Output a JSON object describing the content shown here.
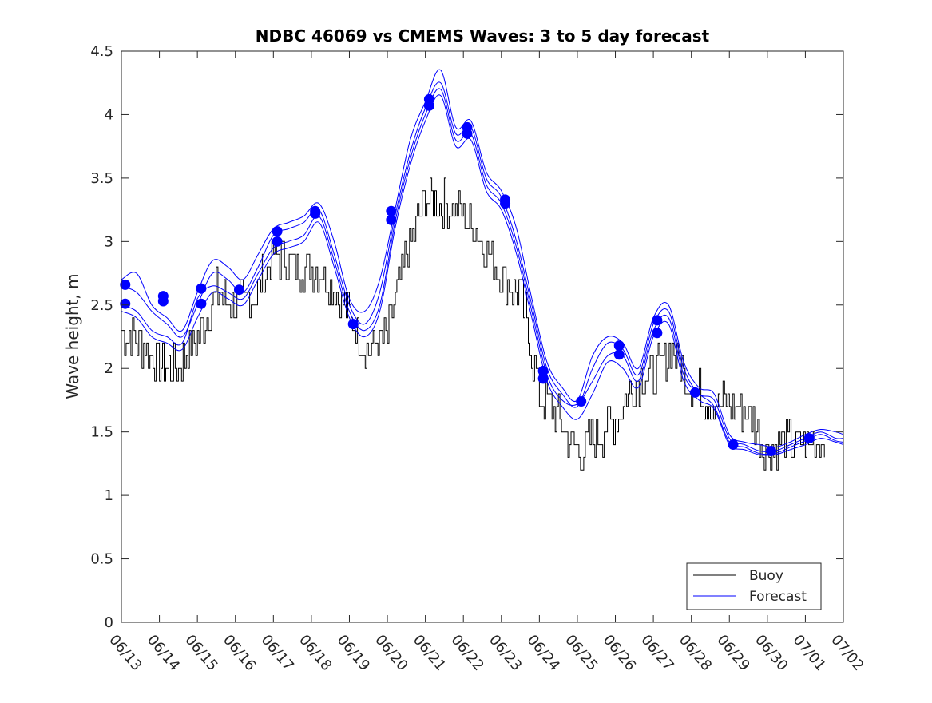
{
  "chart_data": {
    "type": "line",
    "title": "NDBC 46069 vs CMEMS Waves: 3 to 5 day forecast",
    "xlabel": "",
    "ylabel": "Wave height, m",
    "ylim": [
      0,
      4.5
    ],
    "xlim_days": [
      13,
      32
    ],
    "y_ticks": [
      0,
      0.5,
      1,
      1.5,
      2,
      2.5,
      3,
      3.5,
      4,
      4.5
    ],
    "y_tick_labels": [
      "0",
      "0.5",
      "1",
      "1.5",
      "2",
      "2.5",
      "3",
      "3.5",
      "4",
      "4.5"
    ],
    "x_tick_labels": [
      "06/13",
      "06/14",
      "06/15",
      "06/16",
      "06/17",
      "06/18",
      "06/19",
      "06/20",
      "06/21",
      "06/22",
      "06/23",
      "06/24",
      "06/25",
      "06/26",
      "06/27",
      "06/28",
      "06/29",
      "06/30",
      "07/01",
      "07/02"
    ],
    "grid": false,
    "legend_position": "bottom-right",
    "colors": {
      "buoy": "#000000",
      "forecast": "#0000ff"
    },
    "buoy": {
      "name": "Buoy",
      "x": [
        13.0,
        13.5,
        14.0,
        14.5,
        15.0,
        15.5,
        16.0,
        16.5,
        17.0,
        17.5,
        18.0,
        18.5,
        19.0,
        19.5,
        20.0,
        20.5,
        21.0,
        21.5,
        22.0,
        22.5,
        23.0,
        23.5,
        24.0,
        24.5,
        25.0,
        25.5,
        26.0,
        26.5,
        27.0,
        27.5,
        28.0,
        28.5,
        29.0,
        29.5,
        30.0,
        30.5,
        31.0,
        31.5
      ],
      "y": [
        2.3,
        2.2,
        2.05,
        2.0,
        2.25,
        2.6,
        2.5,
        2.55,
        2.9,
        2.8,
        2.8,
        2.7,
        2.4,
        2.15,
        2.25,
        2.9,
        3.35,
        3.3,
        3.2,
        3.0,
        2.7,
        2.6,
        1.8,
        1.6,
        1.35,
        1.45,
        1.6,
        1.9,
        1.95,
        2.15,
        1.85,
        1.75,
        1.7,
        1.65,
        1.35,
        1.4,
        1.4,
        1.45
      ]
    },
    "forecast_runs": [
      {
        "name": "Forecast",
        "x": [
          13.0,
          13.4,
          13.8,
          14.2,
          14.6,
          15.0,
          15.4,
          15.8,
          16.2,
          16.6,
          17.0,
          17.4,
          17.8,
          18.2,
          18.6,
          19.0,
          19.4,
          19.8,
          20.2,
          20.6,
          21.0,
          21.4,
          21.8,
          22.2,
          22.6,
          23.0,
          23.4,
          23.8,
          24.2,
          24.6,
          25.0,
          25.4,
          25.8,
          26.2,
          26.6,
          27.0,
          27.4,
          27.8,
          28.2,
          28.6,
          29.0,
          29.4,
          29.8,
          30.2,
          30.6,
          31.0,
          31.4,
          31.8,
          32.0
        ],
        "y": [
          2.65,
          2.6,
          2.45,
          2.35,
          2.25,
          2.5,
          2.75,
          2.7,
          2.6,
          2.8,
          3.05,
          3.1,
          3.15,
          3.25,
          2.9,
          2.5,
          2.35,
          2.6,
          3.2,
          3.7,
          4.05,
          4.25,
          3.85,
          3.9,
          3.5,
          3.35,
          3.0,
          2.5,
          2.0,
          1.8,
          1.7,
          2.0,
          2.2,
          2.15,
          1.95,
          2.35,
          2.45,
          2.0,
          1.8,
          1.75,
          1.45,
          1.4,
          1.35,
          1.35,
          1.4,
          1.45,
          1.5,
          1.45,
          1.45
        ]
      },
      {
        "name": "Forecast",
        "x": [
          13.0,
          13.4,
          13.8,
          14.2,
          14.6,
          15.0,
          15.4,
          15.8,
          16.2,
          16.6,
          17.0,
          17.4,
          17.8,
          18.2,
          18.6,
          19.0,
          19.4,
          19.8,
          20.2,
          20.6,
          21.0,
          21.4,
          21.8,
          22.2,
          22.6,
          23.0,
          23.4,
          23.8,
          24.2,
          24.6,
          25.0,
          25.4,
          25.8,
          26.2,
          26.6,
          27.0,
          27.4,
          27.8,
          28.2,
          28.6,
          29.0,
          29.4,
          29.8,
          30.2,
          30.6,
          31.0,
          31.4,
          31.8,
          32.0
        ],
        "y": [
          2.5,
          2.45,
          2.3,
          2.25,
          2.2,
          2.55,
          2.65,
          2.6,
          2.55,
          2.75,
          2.95,
          3.0,
          3.05,
          3.2,
          2.85,
          2.45,
          2.3,
          2.5,
          3.15,
          3.65,
          4.0,
          4.2,
          3.8,
          3.85,
          3.45,
          3.3,
          2.95,
          2.45,
          1.95,
          1.75,
          1.72,
          1.9,
          2.1,
          2.1,
          1.9,
          2.3,
          2.4,
          1.95,
          1.8,
          1.7,
          1.42,
          1.38,
          1.33,
          1.33,
          1.38,
          1.43,
          1.48,
          1.43,
          1.42
        ]
      },
      {
        "name": "Forecast",
        "x": [
          13.0,
          13.4,
          13.8,
          14.2,
          14.6,
          15.0,
          15.4,
          15.8,
          16.2,
          16.6,
          17.0,
          17.4,
          17.8,
          18.2,
          18.6,
          19.0,
          19.4,
          19.8,
          20.2,
          20.6,
          21.0,
          21.4,
          21.8,
          22.2,
          22.6,
          23.0,
          23.4,
          23.8,
          24.2,
          24.6,
          25.0,
          25.4,
          25.8,
          26.2,
          26.6,
          27.0,
          27.4,
          27.8,
          28.2,
          28.6,
          29.0,
          29.4,
          29.8,
          30.2,
          30.6,
          31.0,
          31.4,
          31.8,
          32.0
        ],
        "y": [
          2.7,
          2.75,
          2.5,
          2.4,
          2.3,
          2.6,
          2.85,
          2.8,
          2.7,
          2.9,
          3.1,
          3.15,
          3.2,
          3.3,
          3.0,
          2.55,
          2.45,
          2.7,
          3.25,
          3.8,
          4.1,
          4.35,
          3.9,
          3.95,
          3.55,
          3.4,
          3.1,
          2.55,
          2.05,
          1.85,
          1.75,
          2.1,
          2.25,
          2.2,
          2.0,
          2.4,
          2.5,
          2.05,
          1.85,
          1.8,
          1.48,
          1.42,
          1.4,
          1.38,
          1.42,
          1.48,
          1.52,
          1.5,
          1.48
        ]
      },
      {
        "name": "Forecast",
        "x": [
          13.0,
          13.4,
          13.8,
          14.2,
          14.6,
          15.0,
          15.4,
          15.8,
          16.2,
          16.6,
          17.0,
          17.4,
          17.8,
          18.2,
          18.6,
          19.0,
          19.4,
          19.8,
          20.2,
          20.6,
          21.0,
          21.4,
          21.8,
          22.2,
          22.6,
          23.0,
          23.4,
          23.8,
          24.2,
          24.6,
          25.0,
          25.4,
          25.8,
          26.2,
          26.6,
          27.0,
          27.4,
          27.8,
          28.2,
          28.6,
          29.0,
          29.4,
          29.8,
          30.2,
          30.6,
          31.0,
          31.4,
          31.8,
          32.0
        ],
        "y": [
          2.45,
          2.4,
          2.25,
          2.2,
          2.15,
          2.4,
          2.6,
          2.55,
          2.5,
          2.7,
          2.9,
          2.95,
          3.0,
          3.15,
          2.8,
          2.4,
          2.25,
          2.45,
          3.1,
          3.6,
          3.95,
          4.15,
          3.75,
          3.8,
          3.4,
          3.25,
          2.9,
          2.4,
          1.9,
          1.7,
          1.6,
          1.8,
          2.05,
          2.0,
          1.85,
          2.25,
          2.35,
          1.9,
          1.75,
          1.68,
          1.4,
          1.36,
          1.32,
          1.32,
          1.36,
          1.4,
          1.45,
          1.42,
          1.4
        ]
      }
    ],
    "forecast_markers": {
      "name": "Forecast",
      "x": [
        13.1,
        13.1,
        14.1,
        14.1,
        15.1,
        15.1,
        16.1,
        17.1,
        17.1,
        18.1,
        18.1,
        19.1,
        20.1,
        20.1,
        21.1,
        21.1,
        22.1,
        22.1,
        23.1,
        23.1,
        24.1,
        24.1,
        25.1,
        26.1,
        26.1,
        27.1,
        27.1,
        28.1,
        29.1,
        30.1,
        31.1
      ],
      "y": [
        2.66,
        2.51,
        2.57,
        2.53,
        2.63,
        2.51,
        2.62,
        3.08,
        3.0,
        3.24,
        3.22,
        2.35,
        3.24,
        3.17,
        4.12,
        4.07,
        3.9,
        3.85,
        3.33,
        3.3,
        1.98,
        1.92,
        1.74,
        2.18,
        2.11,
        2.38,
        2.28,
        1.81,
        1.4,
        1.35,
        1.45
      ]
    },
    "legend": [
      "Buoy",
      "Forecast"
    ]
  }
}
